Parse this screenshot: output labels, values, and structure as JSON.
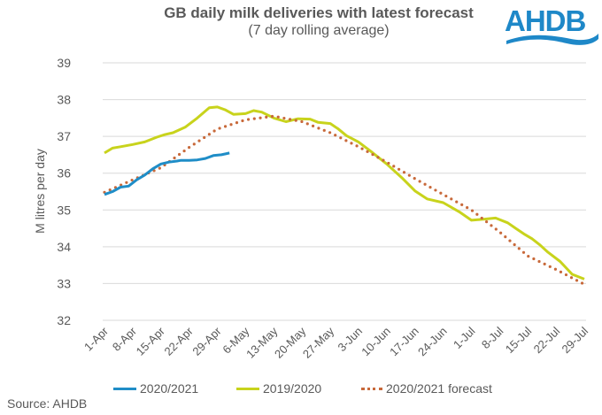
{
  "title": "GB daily milk deliveries with latest forecast",
  "subtitle": "(7 day rolling average)",
  "logo_text": "AHDB",
  "source": "Source: AHDB",
  "colors": {
    "series_2020_2021": "#1f8dc7",
    "series_2019_2020": "#c8d31c",
    "series_forecast": "#c8693a",
    "grid": "#d9d9d9",
    "text": "#595959",
    "logo": "#1e88c8"
  },
  "chart_data": {
    "type": "line",
    "title": "GB daily milk deliveries with latest forecast",
    "subtitle": "(7 day rolling average)",
    "xlabel": "",
    "ylabel": "M litres per day",
    "ylim": [
      32,
      39
    ],
    "yticks": [
      32,
      33,
      34,
      35,
      36,
      37,
      38,
      39
    ],
    "xtick_labels": [
      "1-Apr",
      "8-Apr",
      "15-Apr",
      "22-Apr",
      "29-Apr",
      "6-May",
      "13-May",
      "20-May",
      "27-May",
      "3-Jun",
      "10-Jun",
      "17-Jun",
      "24-Jun",
      "1-Jul",
      "8-Jul",
      "15-Jul",
      "22-Jul",
      "29-Jul"
    ],
    "x_unit": "days since 1-Apr",
    "x_range": [
      0,
      119
    ],
    "grid": "horizontal",
    "legend_position": "bottom",
    "series": [
      {
        "name": "2020/2021",
        "style": "solid",
        "x": [
          0,
          2,
          4,
          6,
          8,
          10,
          12,
          14,
          16,
          18,
          19,
          21,
          23,
          25,
          27,
          29,
          31,
          33,
          35,
          37,
          39
        ],
        "values": [
          35.42,
          35.5,
          35.62,
          35.65,
          35.82,
          35.95,
          36.12,
          36.25,
          36.3,
          36.33,
          36.35,
          36.35,
          36.36,
          36.4,
          36.48,
          36.5,
          36.55,
          null,
          null,
          null,
          null
        ]
      },
      {
        "name": "2019/2020",
        "style": "solid",
        "x": [
          0,
          2,
          4,
          7,
          10,
          13,
          15,
          17,
          20,
          23,
          26,
          28,
          30,
          32,
          35,
          37,
          39,
          42,
          45,
          48,
          51,
          53,
          56,
          58,
          60,
          63,
          66,
          70,
          74,
          77,
          80,
          84,
          88,
          91,
          94,
          97,
          100,
          102,
          104,
          106,
          108,
          110,
          113,
          116,
          119
        ],
        "values": [
          36.55,
          36.68,
          36.72,
          36.78,
          36.85,
          36.98,
          37.05,
          37.1,
          37.25,
          37.5,
          37.78,
          37.8,
          37.72,
          37.6,
          37.62,
          37.7,
          37.66,
          37.5,
          37.4,
          37.48,
          37.47,
          37.38,
          37.35,
          37.2,
          37.02,
          36.85,
          36.6,
          36.25,
          35.85,
          35.52,
          35.3,
          35.2,
          34.95,
          34.72,
          34.75,
          34.78,
          34.65,
          34.5,
          34.35,
          34.22,
          34.05,
          33.85,
          33.6,
          33.25,
          33.12
        ]
      },
      {
        "name": "2020/2021 forecast",
        "style": "dotted",
        "x": [
          0,
          7,
          14,
          21,
          28,
          35,
          42,
          49,
          56,
          63,
          70,
          77,
          84,
          91,
          98,
          105,
          112,
          119
        ],
        "values": [
          35.48,
          35.82,
          36.15,
          36.7,
          37.2,
          37.45,
          37.55,
          37.4,
          37.1,
          36.72,
          36.3,
          35.85,
          35.42,
          35.0,
          34.4,
          33.75,
          33.38,
          32.98
        ]
      }
    ]
  }
}
